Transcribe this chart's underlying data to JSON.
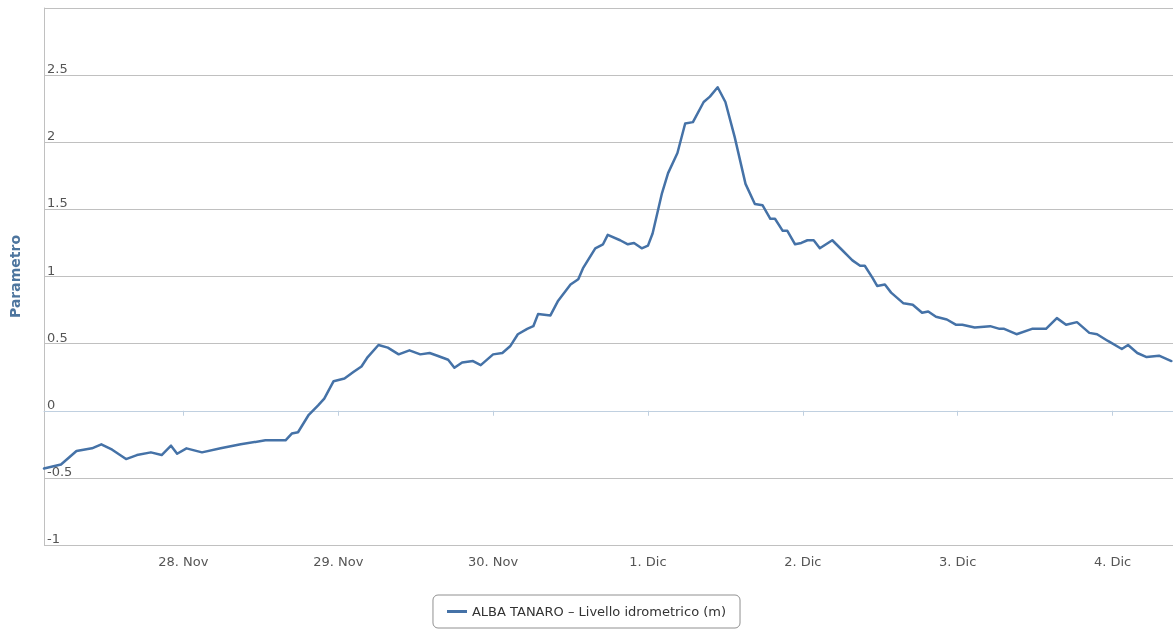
{
  "chart_data": {
    "type": "line",
    "ylabel": "Parametro",
    "xlim": [
      "--11-27T02:24",
      "--12-04T09:22"
    ],
    "xticks": [
      {
        "value": "--11-28",
        "label": "28. Nov"
      },
      {
        "value": "--11-29",
        "label": "29. Nov"
      },
      {
        "value": "--11-30",
        "label": "30. Nov"
      },
      {
        "value": "--12-01",
        "label": "1. Dic"
      },
      {
        "value": "--12-02",
        "label": "2. Dic"
      },
      {
        "value": "--12-03",
        "label": "3. Dic"
      },
      {
        "value": "--12-04",
        "label": "4. Dic"
      }
    ],
    "ylim": [
      -1,
      3
    ],
    "yticks": [
      -1,
      -0.5,
      0,
      0.5,
      1,
      1.5,
      2,
      2.5,
      {
        "value": 3,
        "label": null
      }
    ],
    "grid": "y",
    "legend": "bottom",
    "marker": "none",
    "line_style": "solid",
    "series": [
      {
        "name": "ALBA TANARO – Livello idrometrico (m)",
        "color": "#4572a7",
        "x": [
          "--11-27T02:24",
          "--11-27T05:02",
          "--11-27T07:26",
          "--11-27T09:50",
          "--11-27T11:17",
          "--11-27T12:58",
          "--11-27T15:07",
          "--11-27T16:48",
          "--11-27T18:58",
          "--11-27T20:38",
          "--11-27T22:05",
          "--11-27T23:02",
          "--11-28T00:29",
          "--11-28T02:53",
          "--11-28T05:46",
          "--11-28T08:53",
          "--11-28T12:43",
          "--11-28T15:50",
          "--11-28T16:48",
          "--11-28T17:46",
          "--11-28T19:26",
          "--11-28T20:53",
          "--11-28T21:50",
          "--11-28T23:17",
          "--11-29T00:58",
          "--11-29T02:24",
          "--11-29T03:36",
          "--11-29T04:34",
          "--11-29T06:14",
          "--11-29T07:41",
          "--11-29T09:22",
          "--11-29T11:02",
          "--11-29T12:43",
          "--11-29T14:10",
          "--11-29T15:22",
          "--11-29T17:02",
          "--11-29T18:00",
          "--11-29T19:12",
          "--11-29T20:53",
          "--11-29T22:05",
          "--11-30T00:00",
          "--11-30T01:26",
          "--11-30T02:38",
          "--11-30T03:50",
          "--11-30T05:17",
          "--11-30T06:14",
          "--11-30T06:58",
          "--11-30T08:53",
          "--11-30T10:05",
          "--11-30T12:00",
          "--11-30T13:12",
          "--11-30T13:55",
          "--11-30T15:50",
          "--11-30T17:02",
          "--11-30T17:46",
          "--11-30T19:41",
          "--11-30T20:53",
          "--11-30T21:50",
          "--11-30T23:02",
          "--12-01T00:00",
          "--12-01T00:43",
          "--12-01T02:10",
          "--12-01T03:07",
          "--12-01T04:34",
          "--12-01T05:46",
          "--12-01T06:58",
          "--12-01T08:38",
          "--12-01T09:36",
          "--12-01T10:48",
          "--12-01T12:00",
          "--12-01T13:26",
          "--12-01T15:07",
          "--12-01T16:34",
          "--12-01T17:46",
          "--12-01T18:58",
          "--12-01T19:41",
          "--12-01T20:53",
          "--12-01T21:36",
          "--12-01T22:48",
          "--12-01T23:46",
          "--12-02T00:43",
          "--12-02T01:41",
          "--12-02T02:38",
          "--12-02T04:34",
          "--12-02T06:14",
          "--12-02T07:41",
          "--12-02T08:53",
          "--12-02T09:36",
          "--12-02T10:48",
          "--12-02T11:31",
          "--12-02T12:43",
          "--12-02T13:41",
          "--12-02T15:36",
          "--12-02T17:02",
          "--12-02T18:29",
          "--12-02T19:26",
          "--12-02T20:38",
          "--12-02T22:19",
          "--12-02T23:46",
          "--12-03T00:43",
          "--12-03T02:38",
          "--12-03T05:02",
          "--12-03T06:29",
          "--12-03T07:12",
          "--12-03T09:07",
          "--12-03T11:31",
          "--12-03T13:41",
          "--12-03T15:22",
          "--12-03T16:48",
          "--12-03T18:29",
          "--12-03T20:24",
          "--12-03T21:36",
          "--12-03T23:17",
          "--12-04T01:26",
          "--12-04T02:24",
          "--12-04T03:50",
          "--12-04T05:17",
          "--12-04T07:12",
          "--12-04T09:07"
        ],
        "values": [
          -0.43,
          -0.4,
          -0.3,
          -0.28,
          -0.25,
          -0.29,
          -0.36,
          -0.33,
          -0.31,
          -0.33,
          -0.26,
          -0.32,
          -0.28,
          -0.31,
          -0.28,
          -0.25,
          -0.22,
          -0.22,
          -0.17,
          -0.16,
          -0.03,
          0.04,
          0.09,
          0.22,
          0.24,
          0.29,
          0.33,
          0.4,
          0.49,
          0.47,
          0.42,
          0.45,
          0.42,
          0.43,
          0.41,
          0.38,
          0.32,
          0.36,
          0.37,
          0.34,
          0.42,
          0.43,
          0.48,
          0.57,
          0.61,
          0.63,
          0.72,
          0.71,
          0.82,
          0.94,
          0.98,
          1.06,
          1.21,
          1.24,
          1.31,
          1.27,
          1.24,
          1.25,
          1.21,
          1.23,
          1.32,
          1.62,
          1.77,
          1.92,
          2.14,
          2.15,
          2.3,
          2.34,
          2.41,
          2.3,
          2.04,
          1.69,
          1.54,
          1.53,
          1.43,
          1.43,
          1.34,
          1.34,
          1.24,
          1.25,
          1.27,
          1.27,
          1.21,
          1.27,
          1.19,
          1.12,
          1.08,
          1.08,
          0.99,
          0.93,
          0.94,
          0.88,
          0.8,
          0.79,
          0.73,
          0.74,
          0.7,
          0.68,
          0.64,
          0.64,
          0.62,
          0.63,
          0.61,
          0.61,
          0.57,
          0.61,
          0.61,
          0.69,
          0.64,
          0.66,
          0.58,
          0.57,
          0.52,
          0.46,
          0.49,
          0.43,
          0.4,
          0.41,
          0.37
        ]
      }
    ]
  }
}
